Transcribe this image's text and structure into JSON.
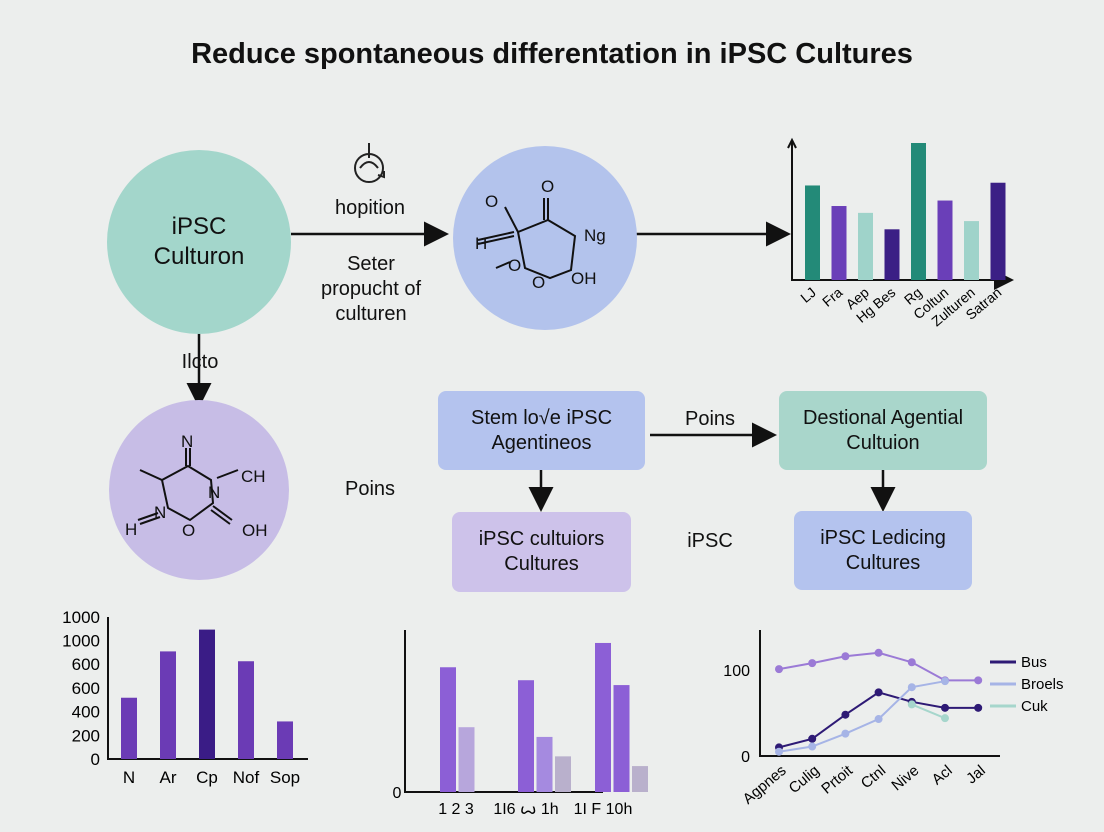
{
  "title": "Reduce spontaneous differentation in iPSC Cultures",
  "nodes": {
    "circle_main": {
      "label": "iPSC Culturon",
      "color": "#a3d6cb"
    },
    "circle_molecule_top": {
      "color": "#b3c3ec",
      "atoms": [
        "O",
        "O",
        "Ng",
        "H",
        "O",
        "O",
        "OH"
      ]
    },
    "circle_molecule_bottom": {
      "color": "#c7bde6",
      "atoms": [
        "N",
        "CH",
        "N",
        "H",
        "N",
        "O",
        "OH"
      ]
    },
    "box_stem": {
      "label": "Stem lo√e iPSC Agentineos",
      "color": "#b4c3ee"
    },
    "box_destional": {
      "label": "Destional Agential Cultuion",
      "color": "#a9d6cb"
    },
    "box_cultuiors": {
      "label": "iPSC cultuiors Cultures",
      "color": "#cdc2ea"
    },
    "box_ledicing": {
      "label": "iPSC Ledicing Cultures",
      "color": "#b4c3ee"
    }
  },
  "labels": {
    "arrow_top_above": "hopition",
    "arrow_top_below": "Seter propucht of culturen",
    "arrow_down_left": "Ilcto",
    "middle_left": "Poins",
    "arrow_boxes": "Poins",
    "middle_right": "iPSC"
  },
  "icons": {
    "arrow_top": "recycle-cycle-icon"
  },
  "chart_data": [
    {
      "type": "bar",
      "categories": [
        "LJ",
        "Fra",
        "Aep",
        "Hg Bes",
        "Rg",
        "Coltun",
        "Zulturen",
        "Satran"
      ],
      "values": [
        69,
        54,
        49,
        37,
        100,
        58,
        43,
        71
      ],
      "colors": [
        "#238a78",
        "#6a3fb8",
        "#9fd3ca",
        "#3b1f85",
        "#238a78",
        "#6a3fb8",
        "#9fd3ca",
        "#3b1f85"
      ],
      "ylim": [
        0,
        100
      ],
      "grid": false
    },
    {
      "type": "bar",
      "categories": [
        "N",
        "Ar",
        "Cp",
        "Nof",
        "Sop"
      ],
      "values": [
        517,
        908,
        1092,
        825,
        317
      ],
      "colors": [
        "#6b3bb5",
        "#6b3bb5",
        "#3a1c86",
        "#6b3bb5",
        "#6b3bb5"
      ],
      "ytick_labels": [
        "0",
        "200",
        "400",
        "600",
        "600",
        "1000",
        "1000"
      ],
      "ylim": [
        0,
        1200
      ],
      "grid": false
    },
    {
      "type": "bar",
      "group_labels": [
        "1  2   3",
        "1I6 ꙍ 1h",
        "1I F 10h"
      ],
      "groups": [
        [
          77,
          40
        ],
        [
          69,
          34,
          22
        ],
        [
          92,
          66,
          16
        ]
      ],
      "colors": [
        "#8c5fd6",
        "#b7a6dc",
        "#a58ae0",
        "#b9b0cc"
      ],
      "ytick_labels": [
        "0"
      ],
      "ylim": [
        0,
        100
      ],
      "grid": false
    },
    {
      "type": "line",
      "categories": [
        "Agpnes",
        "Culig",
        "Prtoit",
        "Ctnl",
        "Nive",
        "Acl",
        "Jal"
      ],
      "ytick_labels": [
        "0",
        "100"
      ],
      "ylim": [
        0,
        145
      ],
      "legend": "right",
      "series": [
        {
          "values": [
            101,
            108,
            116,
            120,
            109,
            88,
            88
          ],
          "color": "#9b7ad6"
        },
        {
          "name": "Bus",
          "values": [
            10,
            20,
            48,
            74,
            63,
            56,
            56
          ],
          "color": "#2e1a75"
        },
        {
          "name": "Broels",
          "values": [
            5,
            11,
            26,
            43,
            80,
            87,
            null
          ],
          "color": "#a6b4e6"
        },
        {
          "name": "Cuk",
          "values": [
            null,
            null,
            null,
            null,
            60,
            44,
            null
          ],
          "color": "#a6d6cc"
        }
      ]
    }
  ]
}
